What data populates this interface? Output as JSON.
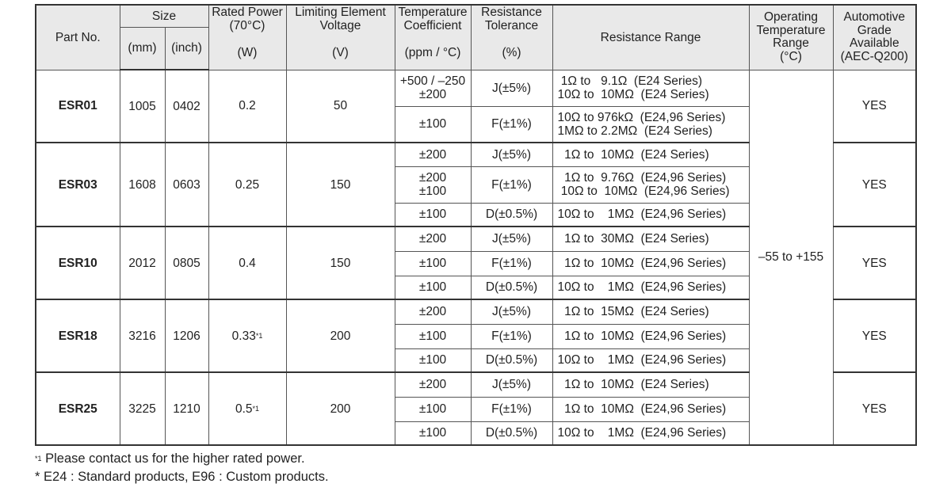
{
  "headers": {
    "part_no": "Part No.",
    "size": "Size",
    "mm": "(mm)",
    "inch": "(inch)",
    "rated_power": "Rated Power\n(70°C)",
    "rated_power_unit": "(W)",
    "voltage": "Limiting Element\nVoltage",
    "voltage_unit": "(V)",
    "tcr": "Temperature\nCoefficient",
    "tcr_unit": "(ppm / °C)",
    "tolerance": "Resistance\nTolerance",
    "tolerance_unit": "(%)",
    "range": "Resistance Range",
    "op_temp": "Operating\nTemperature\nRange\n(°C)",
    "automotive": "Automotive\nGrade\nAvailable\n(AEC-Q200)"
  },
  "operating_temp": "–55 to +155",
  "parts": [
    {
      "name": "ESR01",
      "mm": "1005",
      "inch": "0402",
      "power": "0.2",
      "power_note": "",
      "voltage": "50",
      "automotive": "YES",
      "rows": [
        {
          "tcr": "+500 / –250\n±200",
          "tol": "J(±5%)",
          "range": " 1Ω to   9.1Ω  (E24 Series)\n10Ω to  10MΩ  (E24 Series)"
        },
        {
          "tcr": "±100",
          "tol": "F(±1%)",
          "range": "10Ω to 976kΩ  (E24,96 Series)\n1MΩ to 2.2MΩ  (E24 Series)"
        }
      ]
    },
    {
      "name": "ESR03",
      "mm": "1608",
      "inch": "0603",
      "power": "0.25",
      "power_note": "",
      "voltage": "150",
      "automotive": "YES",
      "rows": [
        {
          "tcr": "±200",
          "tol": "J(±5%)",
          "range": "  1Ω to  10MΩ  (E24 Series)"
        },
        {
          "tcr": "±200\n±100",
          "tol": "F(±1%)",
          "range": "  1Ω to  9.76Ω  (E24,96 Series)\n 10Ω to  10MΩ  (E24,96 Series)"
        },
        {
          "tcr": "±100",
          "tol": "D(±0.5%)",
          "range": "10Ω to    1MΩ  (E24,96 Series)"
        }
      ]
    },
    {
      "name": "ESR10",
      "mm": "2012",
      "inch": "0805",
      "power": "0.4",
      "power_note": "",
      "voltage": "150",
      "automotive": "YES",
      "rows": [
        {
          "tcr": "±200",
          "tol": "J(±5%)",
          "range": "  1Ω to  30MΩ  (E24 Series)"
        },
        {
          "tcr": "±100",
          "tol": "F(±1%)",
          "range": "  1Ω to  10MΩ  (E24,96 Series)"
        },
        {
          "tcr": "±100",
          "tol": "D(±0.5%)",
          "range": "10Ω to    1MΩ  (E24,96 Series)"
        }
      ]
    },
    {
      "name": "ESR18",
      "mm": "3216",
      "inch": "1206",
      "power": "0.33",
      "power_note": "*1",
      "voltage": "200",
      "automotive": "YES",
      "rows": [
        {
          "tcr": "±200",
          "tol": "J(±5%)",
          "range": "  1Ω to  15MΩ  (E24 Series)"
        },
        {
          "tcr": "±100",
          "tol": "F(±1%)",
          "range": "  1Ω to  10MΩ  (E24,96 Series)"
        },
        {
          "tcr": "±100",
          "tol": "D(±0.5%)",
          "range": "10Ω to    1MΩ  (E24,96 Series)"
        }
      ]
    },
    {
      "name": "ESR25",
      "mm": "3225",
      "inch": "1210",
      "power": "0.5",
      "power_note": "*1",
      "voltage": "200",
      "automotive": "YES",
      "rows": [
        {
          "tcr": "±200",
          "tol": "J(±5%)",
          "range": "  1Ω to  10MΩ  (E24 Series)"
        },
        {
          "tcr": "±100",
          "tol": "F(±1%)",
          "range": "  1Ω to  10MΩ  (E24,96 Series)"
        },
        {
          "tcr": "±100",
          "tol": "D(±0.5%)",
          "range": "10Ω to    1MΩ  (E24,96 Series)"
        }
      ]
    }
  ],
  "notes": [
    {
      "mark": "*1",
      "text": " Please contact us for the higher rated power."
    },
    {
      "mark": "*",
      "text": " E24 : Standard products, E96 : Custom products."
    }
  ]
}
